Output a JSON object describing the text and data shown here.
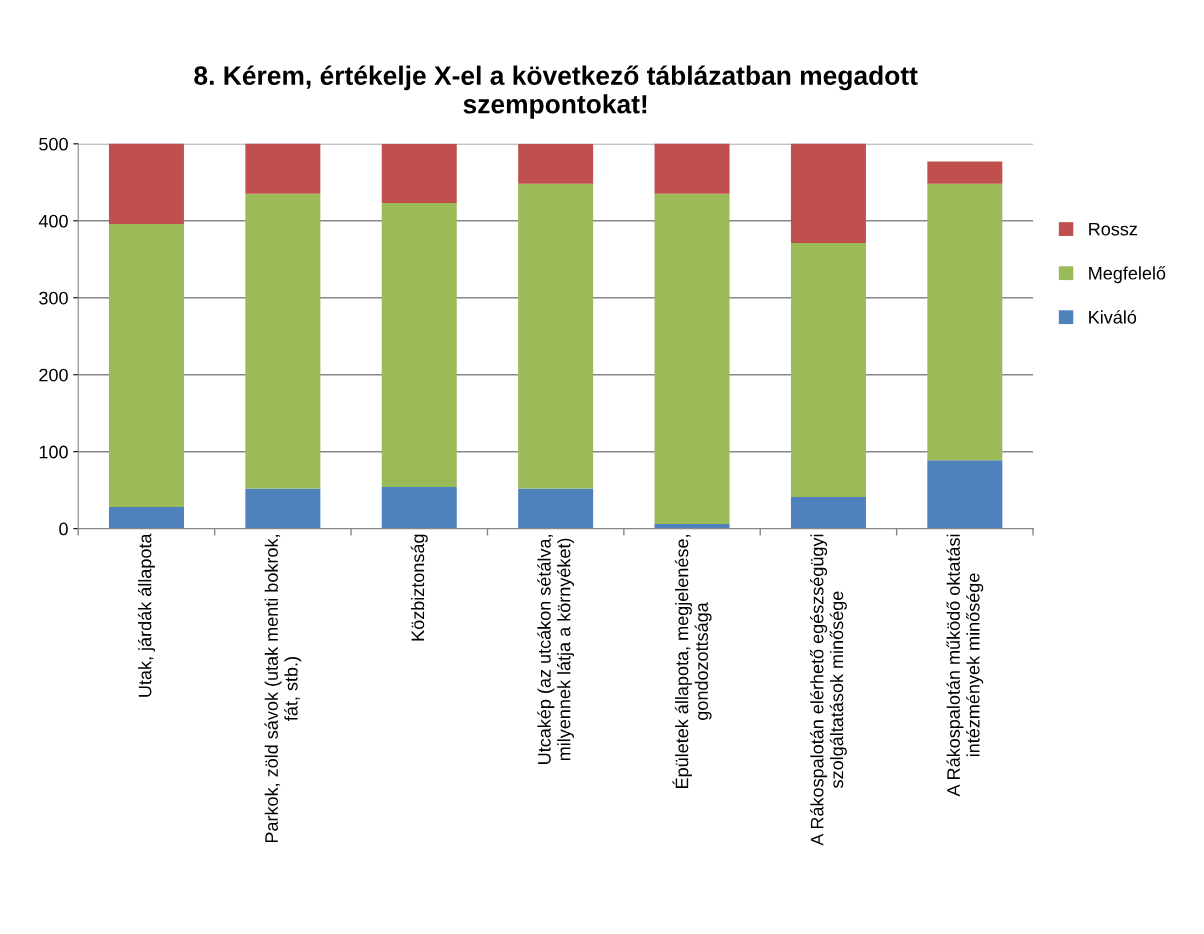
{
  "chart_data": {
    "type": "bar",
    "stacked": true,
    "title": "8. Kérem, értékelje X-el a következő táblázatban megadott\nszempontokat!",
    "categories": [
      "Utak, járdák állapota",
      "Parkok, zöld sávok (utak menti bokrok,\nfát, stb.)",
      "Közbiztonság",
      "Utcakép (az utcákon sétálva,\nmilyennek látja a környéket)",
      "Épületek állapota, megjelenése,\ngondozottsága",
      "A Rákospalotán elérhető egészségügyi\nszolgáltatások minősége",
      "A Rákospalotán működő oktatási\nintézmények minősége"
    ],
    "series": [
      {
        "name": "Kiváló",
        "color": "#4f81bd",
        "values": [
          28,
          52,
          54,
          52,
          6,
          41,
          89
        ]
      },
      {
        "name": "Megfelelő",
        "color": "#9bbb59",
        "values": [
          368,
          383,
          369,
          396,
          429,
          330,
          359
        ]
      },
      {
        "name": "Rossz",
        "color": "#c0504d",
        "values": [
          105,
          66,
          77,
          52,
          66,
          130,
          29
        ]
      }
    ],
    "ylim": [
      0,
      500
    ],
    "yticks": [
      0,
      100,
      200,
      300,
      400,
      500
    ],
    "grid": "y",
    "legend": "right"
  }
}
